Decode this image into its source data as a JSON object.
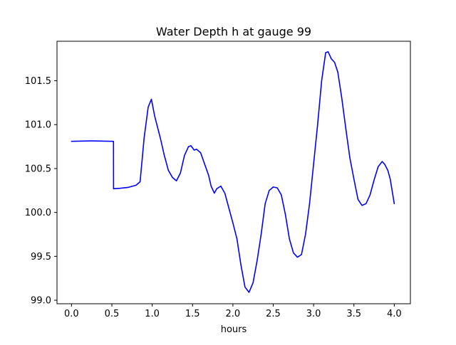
{
  "chart_data": {
    "type": "line",
    "title": "Water Depth h at gauge 99",
    "xlabel": "hours",
    "ylabel": "",
    "xlim": [
      -0.18,
      4.2
    ],
    "ylim": [
      98.96,
      101.95
    ],
    "x_ticks": [
      0.0,
      0.5,
      1.0,
      1.5,
      2.0,
      2.5,
      3.0,
      3.5,
      4.0
    ],
    "x_tick_labels": [
      "0.0",
      "0.5",
      "1.0",
      "1.5",
      "2.0",
      "2.5",
      "3.0",
      "3.5",
      "4.0"
    ],
    "y_ticks": [
      99.0,
      99.5,
      100.0,
      100.5,
      101.0,
      101.5
    ],
    "y_tick_labels": [
      "99.0",
      "99.5",
      "100.0",
      "100.5",
      "101.0",
      "101.5"
    ],
    "grid": false,
    "legend": "none",
    "series": [
      {
        "color": "#0000ff",
        "x": [
          0.0,
          0.25,
          0.52,
          0.521,
          0.6,
          0.7,
          0.8,
          0.85,
          0.9,
          0.95,
          0.99,
          1.03,
          1.1,
          1.15,
          1.2,
          1.25,
          1.3,
          1.35,
          1.4,
          1.45,
          1.48,
          1.52,
          1.55,
          1.6,
          1.65,
          1.7,
          1.73,
          1.77,
          1.8,
          1.85,
          1.9,
          1.95,
          2.0,
          2.05,
          2.1,
          2.15,
          2.2,
          2.25,
          2.3,
          2.35,
          2.4,
          2.45,
          2.5,
          2.55,
          2.6,
          2.65,
          2.7,
          2.75,
          2.8,
          2.85,
          2.9,
          2.95,
          3.0,
          3.05,
          3.1,
          3.15,
          3.18,
          3.22,
          3.26,
          3.3,
          3.35,
          3.4,
          3.45,
          3.5,
          3.55,
          3.6,
          3.65,
          3.7,
          3.75,
          3.8,
          3.85,
          3.88,
          3.92,
          3.95,
          4.0
        ],
        "y": [
          100.81,
          100.815,
          100.81,
          100.27,
          100.275,
          100.285,
          100.31,
          100.35,
          100.85,
          101.2,
          101.29,
          101.1,
          100.85,
          100.65,
          100.48,
          100.4,
          100.36,
          100.45,
          100.65,
          100.75,
          100.76,
          100.71,
          100.72,
          100.68,
          100.55,
          100.42,
          100.3,
          100.22,
          100.27,
          100.3,
          100.22,
          100.05,
          99.88,
          99.7,
          99.4,
          99.15,
          99.09,
          99.2,
          99.45,
          99.75,
          100.1,
          100.25,
          100.29,
          100.28,
          100.2,
          99.98,
          99.7,
          99.54,
          99.49,
          99.52,
          99.75,
          100.1,
          100.55,
          101.0,
          101.5,
          101.82,
          101.83,
          101.75,
          101.71,
          101.6,
          101.3,
          100.95,
          100.62,
          100.38,
          100.15,
          100.08,
          100.1,
          100.2,
          100.37,
          100.52,
          100.58,
          100.55,
          100.48,
          100.38,
          100.1
        ]
      }
    ]
  }
}
